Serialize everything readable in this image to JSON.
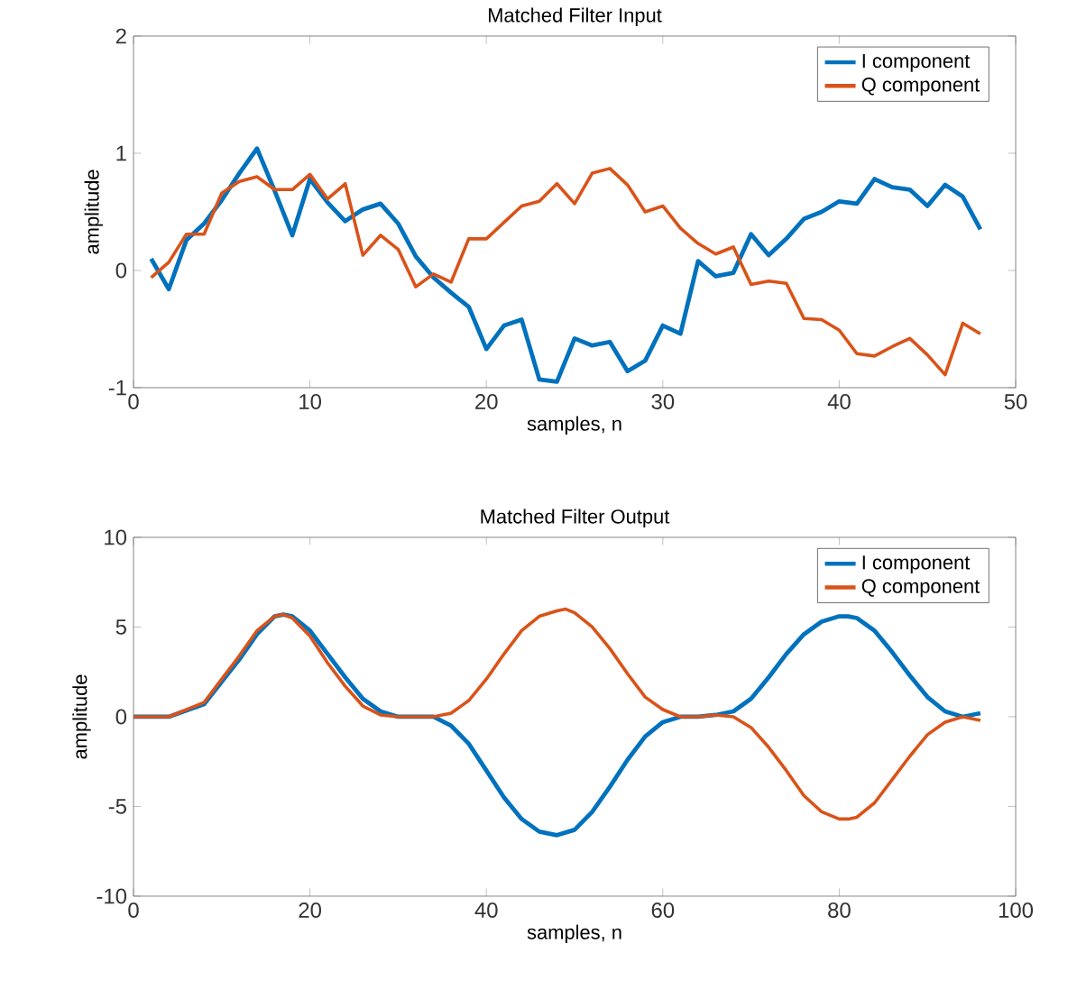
{
  "chart_data": [
    {
      "type": "line",
      "title": "Matched Filter Input",
      "xlabel": "samples, n",
      "ylabel": "amplitude",
      "xlim": [
        0,
        50
      ],
      "ylim": [
        -1,
        2
      ],
      "xticks": [
        0,
        10,
        20,
        30,
        40,
        50
      ],
      "yticks": [
        -1,
        0,
        1,
        2
      ],
      "legend": "top right",
      "line_style": "solid",
      "x": [
        1,
        2,
        3,
        4,
        5,
        6,
        7,
        8,
        9,
        10,
        11,
        12,
        13,
        14,
        15,
        16,
        17,
        18,
        19,
        20,
        21,
        22,
        23,
        24,
        25,
        26,
        27,
        28,
        29,
        30,
        31,
        32,
        33,
        34,
        35,
        36,
        37,
        38,
        39,
        40,
        41,
        42,
        43,
        44,
        45,
        46,
        47,
        48
      ],
      "series": [
        {
          "name": "I component",
          "color": "#0072bd",
          "values": [
            0.1,
            -0.16,
            0.26,
            0.4,
            0.6,
            0.83,
            1.04,
            0.68,
            0.3,
            0.78,
            0.58,
            0.42,
            0.52,
            0.57,
            0.4,
            0.12,
            -0.06,
            -0.19,
            -0.31,
            -0.67,
            -0.47,
            -0.42,
            -0.93,
            -0.95,
            -0.58,
            -0.64,
            -0.61,
            -0.86,
            -0.77,
            -0.47,
            -0.54,
            0.08,
            -0.05,
            -0.02,
            0.31,
            0.13,
            0.27,
            0.44,
            0.5,
            0.59,
            0.57,
            0.78,
            0.71,
            0.69,
            0.55,
            0.73,
            0.63,
            0.35
          ]
        },
        {
          "name": "Q component",
          "color": "#d95319",
          "values": [
            -0.06,
            0.07,
            0.31,
            0.31,
            0.66,
            0.76,
            0.8,
            0.69,
            0.69,
            0.82,
            0.61,
            0.74,
            0.13,
            0.3,
            0.18,
            -0.14,
            -0.03,
            -0.1,
            0.27,
            0.27,
            0.41,
            0.55,
            0.59,
            0.74,
            0.57,
            0.83,
            0.87,
            0.73,
            0.5,
            0.55,
            0.36,
            0.23,
            0.14,
            0.2,
            -0.12,
            -0.09,
            -0.11,
            -0.41,
            -0.42,
            -0.51,
            -0.71,
            -0.73,
            -0.65,
            -0.58,
            -0.72,
            -0.89,
            -0.45,
            -0.54
          ]
        }
      ]
    },
    {
      "type": "line",
      "title": "Matched Filter Output",
      "xlabel": "samples, n",
      "ylabel": "amplitude",
      "xlim": [
        0,
        100
      ],
      "ylim": [
        -10,
        10
      ],
      "xticks": [
        0,
        20,
        40,
        60,
        80,
        100
      ],
      "yticks": [
        -10,
        -5,
        0,
        5,
        10
      ],
      "legend": "top right",
      "line_style": "solid",
      "series": [
        {
          "name": "I component",
          "color": "#0072bd",
          "x": [
            0,
            4,
            8,
            12,
            14,
            16,
            17,
            18,
            20,
            22,
            24,
            26,
            28,
            30,
            34,
            36,
            38,
            40,
            42,
            44,
            46,
            48,
            50,
            52,
            54,
            56,
            58,
            60,
            62,
            64,
            66,
            68,
            70,
            72,
            74,
            76,
            78,
            80,
            81,
            82,
            84,
            86,
            88,
            90,
            92,
            94,
            96
          ],
          "values": [
            0,
            0,
            0.7,
            3.2,
            4.6,
            5.6,
            5.7,
            5.6,
            4.8,
            3.5,
            2.2,
            1.0,
            0.3,
            0,
            0,
            -0.5,
            -1.5,
            -3.0,
            -4.5,
            -5.7,
            -6.4,
            -6.6,
            -6.3,
            -5.3,
            -3.9,
            -2.4,
            -1.1,
            -0.3,
            0,
            0,
            0.1,
            0.3,
            1.0,
            2.2,
            3.5,
            4.6,
            5.3,
            5.6,
            5.6,
            5.5,
            4.8,
            3.6,
            2.3,
            1.1,
            0.3,
            0,
            0.2
          ]
        },
        {
          "name": "Q component",
          "color": "#d95319",
          "x": [
            0,
            4,
            8,
            12,
            14,
            16,
            17,
            18,
            20,
            22,
            24,
            26,
            28,
            30,
            34,
            36,
            38,
            40,
            42,
            44,
            46,
            48,
            49,
            50,
            52,
            54,
            56,
            58,
            60,
            62,
            64,
            66,
            68,
            70,
            72,
            74,
            76,
            78,
            80,
            81,
            82,
            84,
            86,
            88,
            90,
            92,
            94,
            96
          ],
          "values": [
            0,
            0,
            0.8,
            3.4,
            4.8,
            5.6,
            5.7,
            5.5,
            4.5,
            3.0,
            1.7,
            0.6,
            0.1,
            0,
            0,
            0.2,
            0.9,
            2.1,
            3.5,
            4.8,
            5.6,
            5.9,
            6.0,
            5.8,
            5.0,
            3.8,
            2.4,
            1.1,
            0.4,
            0,
            0,
            0.1,
            0,
            -0.6,
            -1.7,
            -3.0,
            -4.4,
            -5.3,
            -5.7,
            -5.7,
            -5.6,
            -4.8,
            -3.5,
            -2.2,
            -1.0,
            -0.3,
            0,
            -0.2
          ]
        }
      ]
    }
  ]
}
